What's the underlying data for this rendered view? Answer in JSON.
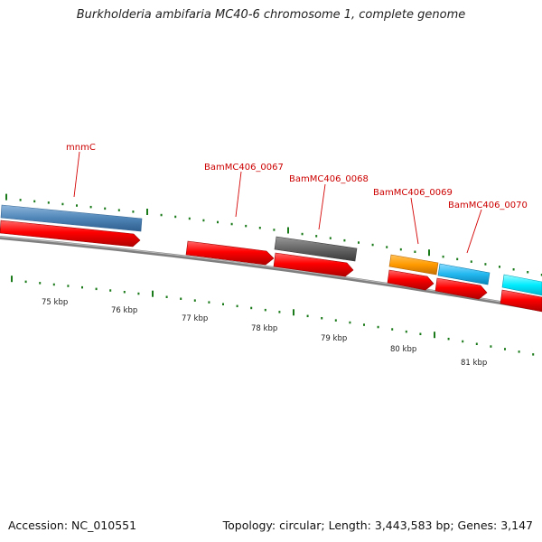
{
  "title": "Burkholderia ambifaria MC40-6 chromosome 1, complete genome",
  "footer": {
    "accession": "Accession: NC_010551",
    "summary": "Topology: circular; Length: 3,443,583 bp; Genes: 3,147"
  },
  "scale": {
    "unit": "kbp",
    "ticks": [
      {
        "label": "75 kbp"
      },
      {
        "label": "76 kbp"
      },
      {
        "label": "77 kbp"
      },
      {
        "label": "78 kbp"
      },
      {
        "label": "79 kbp"
      },
      {
        "label": "80 kbp"
      },
      {
        "label": "81 kbp"
      }
    ]
  },
  "genes": [
    {
      "label": "mnmC",
      "color": "#d40000"
    },
    {
      "label": "BamMC406_0067",
      "color": "#d40000"
    },
    {
      "label": "BamMC406_0068",
      "color": "#d40000"
    },
    {
      "label": "BamMC406_0069",
      "color": "#d40000"
    },
    {
      "label": "BamMC406_0070",
      "color": "#d40000"
    }
  ],
  "colors": {
    "cds": "#ff0000",
    "steel_blue": "#4f86b8",
    "gray": "#666666",
    "orange": "#ff9a00",
    "sky_blue": "#22b8f0",
    "cyan": "#00ecff",
    "backbone": "#808080",
    "tick": "#1a7a1a",
    "label_line": "#d40000"
  }
}
